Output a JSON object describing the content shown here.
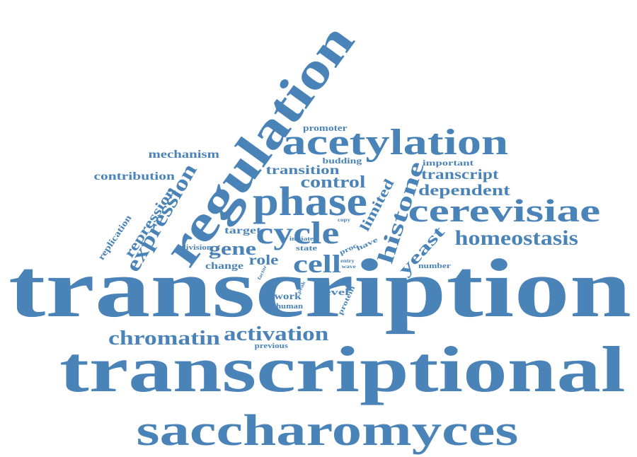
{
  "text_color": "#4a83b8",
  "words": [
    {
      "text": "transcription"
    },
    {
      "text": "transcriptional"
    },
    {
      "text": "saccharomyces"
    },
    {
      "text": "regulation"
    },
    {
      "text": "acetylation"
    },
    {
      "text": "cerevisiae"
    },
    {
      "text": "phase"
    },
    {
      "text": "cycle"
    },
    {
      "text": "histone"
    },
    {
      "text": "expression"
    },
    {
      "text": "cell"
    },
    {
      "text": "homeostasis"
    },
    {
      "text": "chromatin"
    },
    {
      "text": "activation"
    },
    {
      "text": "gene"
    },
    {
      "text": "yeast"
    },
    {
      "text": "control"
    },
    {
      "text": "dependent"
    },
    {
      "text": "transcript"
    },
    {
      "text": "limited"
    },
    {
      "text": "transition"
    },
    {
      "text": "repression"
    },
    {
      "text": "role"
    },
    {
      "text": "mechanism"
    },
    {
      "text": "contribution"
    },
    {
      "text": "promoter"
    },
    {
      "text": "replication"
    },
    {
      "text": "target"
    },
    {
      "text": "work"
    },
    {
      "text": "change"
    },
    {
      "text": "division"
    },
    {
      "text": "budding"
    },
    {
      "text": "important"
    },
    {
      "text": "level"
    },
    {
      "text": "human"
    },
    {
      "text": "previous"
    },
    {
      "text": "state"
    },
    {
      "text": "initiate"
    },
    {
      "text": "have"
    },
    {
      "text": "proc"
    },
    {
      "text": "number"
    },
    {
      "text": "protein"
    },
    {
      "text": "copy"
    },
    {
      "text": "entry"
    },
    {
      "text": "wave"
    },
    {
      "text": "peak"
    },
    {
      "text": "factor"
    }
  ]
}
